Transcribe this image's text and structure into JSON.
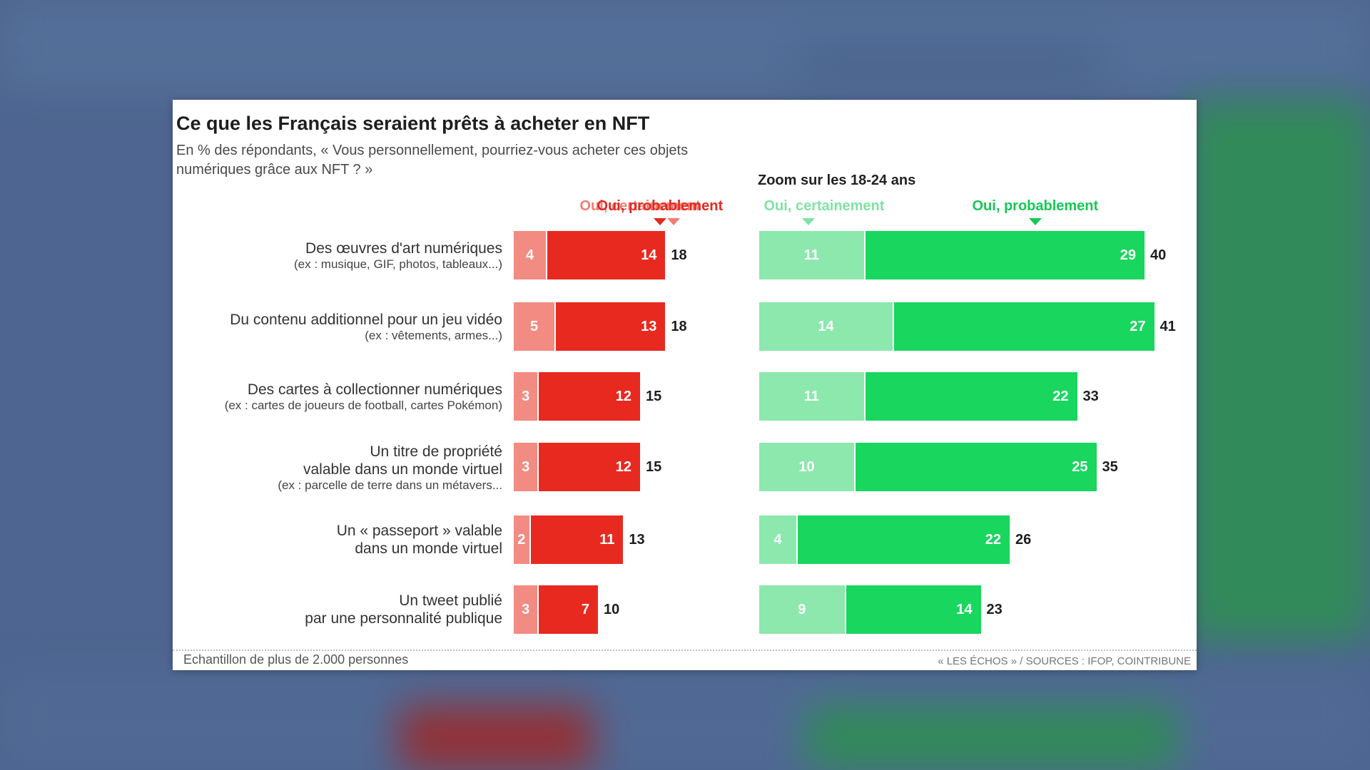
{
  "chart_data": {
    "type": "bar",
    "title": "Ce que les Français seraient prêts à acheter en NFT",
    "subtitle": "En % des répondants, « Vous personnellement, pourriez-vous acheter ces objets numériques grâce aux NFT ? »",
    "zoom_title": "Zoom sur les 18-24 ans",
    "categories": [
      {
        "main": "Des œuvres d'art numériques",
        "sub": "(ex : musique, GIF, photos, tableaux...)"
      },
      {
        "main": "Du contenu additionnel pour un jeu vidéo",
        "sub": "(ex : vêtements, armes...)"
      },
      {
        "main": "Des cartes à collectionner numériques",
        "sub": "(ex : cartes de joueurs de football, cartes Pokémon)"
      },
      {
        "main": "Un titre de propriété\nvalable dans un monde virtuel",
        "sub": "(ex : parcelle de terre dans un métavers..."
      },
      {
        "main": "Un « passeport » valable\ndans un monde virtuel",
        "sub": ""
      },
      {
        "main": "Un tweet publié\npar une personnalité publique",
        "sub": ""
      }
    ],
    "panels": [
      {
        "key": "all",
        "series": [
          {
            "name": "Oui, certainement",
            "values": [
              4,
              5,
              3,
              3,
              2,
              3
            ],
            "color": "#f28b82"
          },
          {
            "name": "Oui, probablement",
            "values": [
              14,
              13,
              12,
              12,
              11,
              7
            ],
            "color": "#e8291f"
          }
        ],
        "totals": [
          18,
          18,
          15,
          15,
          13,
          10
        ],
        "legend_colors": [
          "#f07d74",
          "#e02b20"
        ]
      },
      {
        "key": "18-24",
        "series": [
          {
            "name": "Oui, certainement",
            "values": [
              11,
              14,
              11,
              10,
              4,
              9
            ],
            "color": "#8ce8ad"
          },
          {
            "name": "Oui, probablement",
            "values": [
              29,
              27,
              22,
              25,
              22,
              14
            ],
            "color": "#19d65e"
          }
        ],
        "totals": [
          40,
          41,
          33,
          35,
          26,
          23
        ],
        "legend_colors": [
          "#7fe3a3",
          "#16c956"
        ]
      }
    ],
    "footnote": "Echantillon de plus de 2.000 personnes",
    "credit": "« LES ÉCHOS » / SOURCES : IFOP, COINTRIBUNE"
  }
}
